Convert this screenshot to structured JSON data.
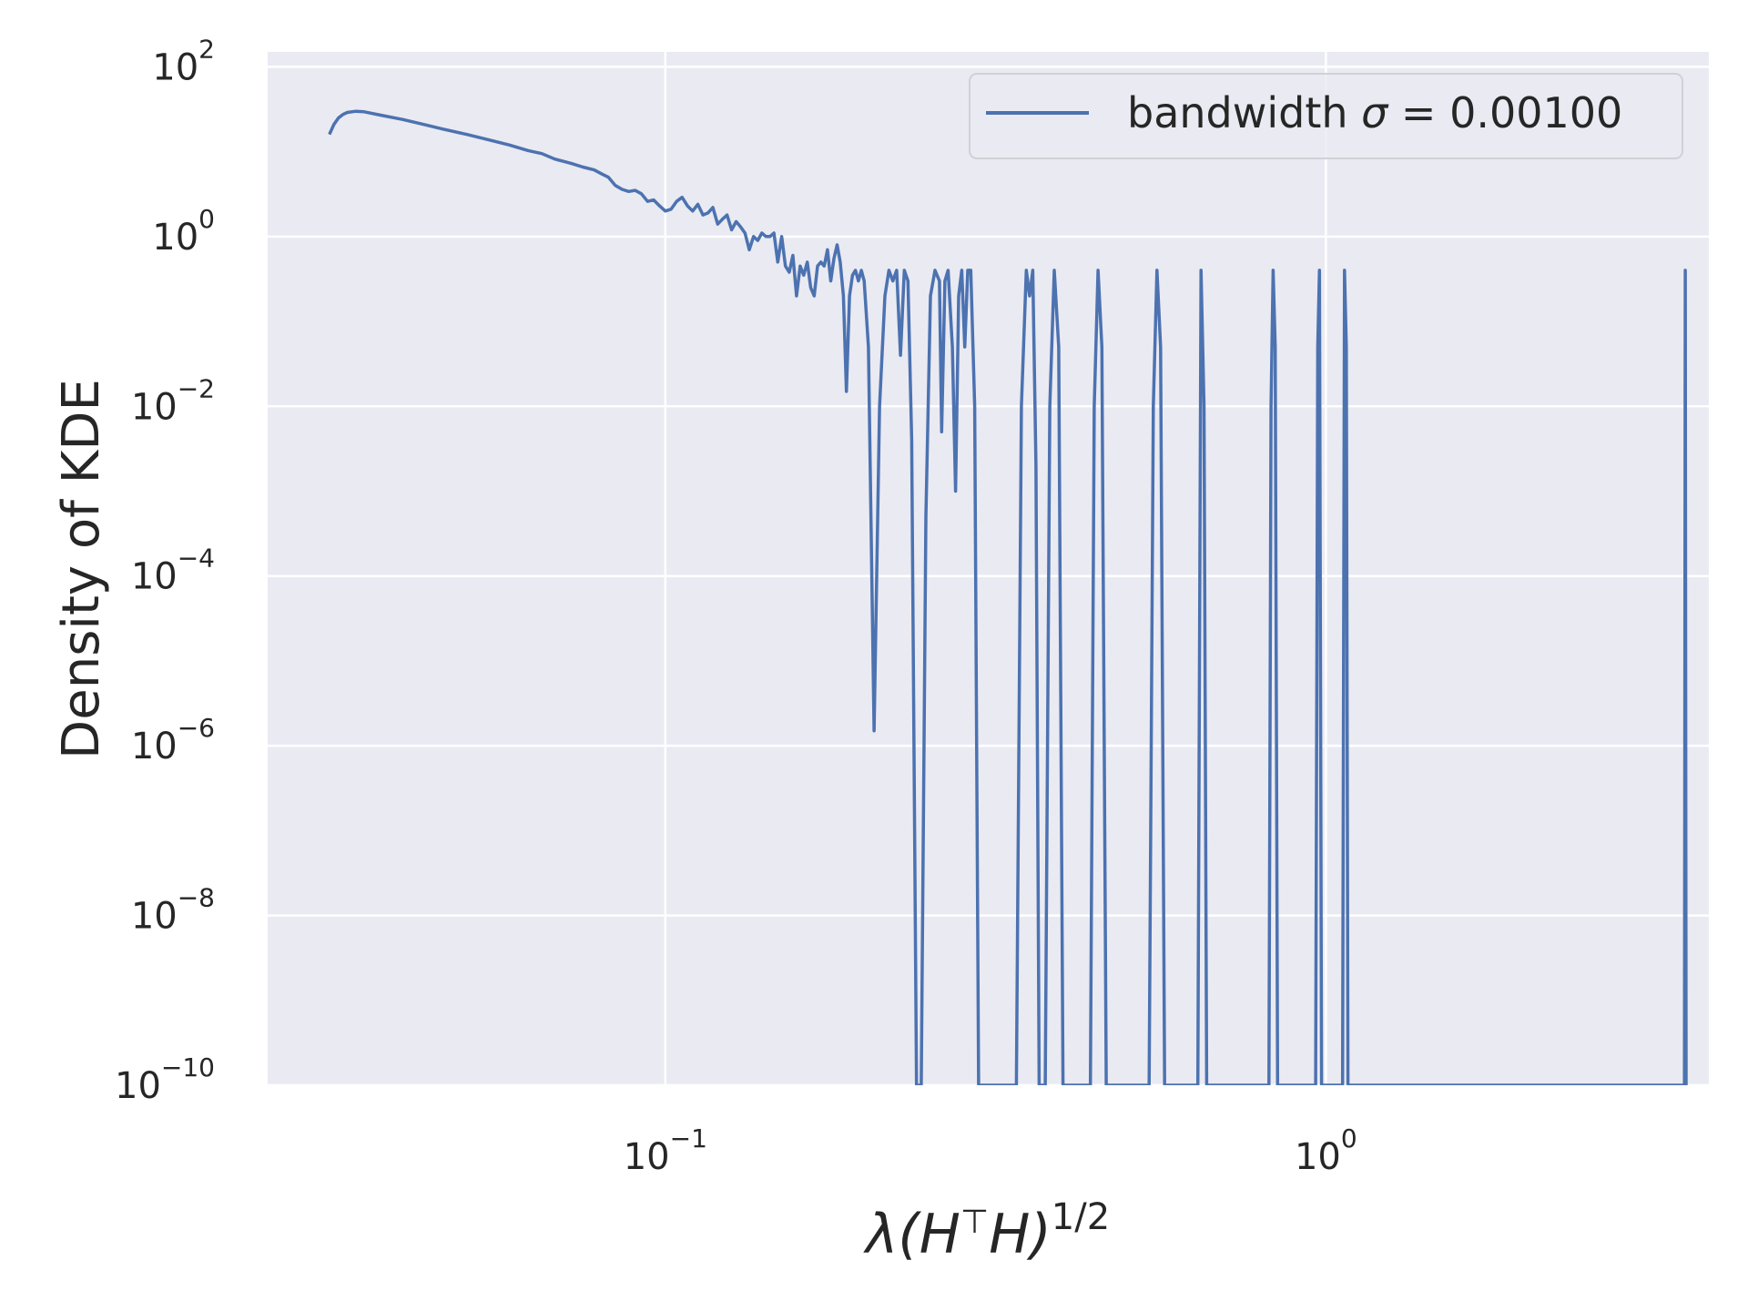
{
  "chart_data": {
    "type": "line",
    "xlabel": "λ(H⊤H)1/2",
    "ylabel": "Density of KDE",
    "xscale": "log",
    "yscale": "log",
    "xlim": [
      0.025,
      3.8
    ],
    "ylim": [
      1e-10,
      150
    ],
    "grid": true,
    "legend_position": "top-right",
    "background": "#eaeaf2",
    "grid_color": "#ffffff",
    "x_ticks": [
      {
        "value": 0.1,
        "base": "10",
        "exp": "−1"
      },
      {
        "value": 1,
        "base": "10",
        "exp": "0"
      }
    ],
    "y_ticks": [
      {
        "value": 100,
        "base": "10",
        "exp": "2"
      },
      {
        "value": 1,
        "base": "10",
        "exp": "0"
      },
      {
        "value": 0.01,
        "base": "10",
        "exp": "−2"
      },
      {
        "value": 0.0001,
        "base": "10",
        "exp": "−4"
      },
      {
        "value": 1e-06,
        "base": "10",
        "exp": "−6"
      },
      {
        "value": 1e-08,
        "base": "10",
        "exp": "−8"
      },
      {
        "value": 1e-10,
        "base": "10",
        "exp": "−10"
      }
    ],
    "series": [
      {
        "name": "bandwidth σ = 0.00100",
        "color": "#4c72b0",
        "points": [
          [
            0.031,
            16
          ],
          [
            0.0315,
            21
          ],
          [
            0.032,
            25
          ],
          [
            0.0325,
            27.5
          ],
          [
            0.033,
            29
          ],
          [
            0.034,
            30
          ],
          [
            0.035,
            29.5
          ],
          [
            0.037,
            27
          ],
          [
            0.04,
            24
          ],
          [
            0.043,
            21
          ],
          [
            0.046,
            18.5
          ],
          [
            0.05,
            16
          ],
          [
            0.054,
            13.8
          ],
          [
            0.058,
            12
          ],
          [
            0.062,
            10.3
          ],
          [
            0.065,
            9.5
          ],
          [
            0.068,
            8.2
          ],
          [
            0.072,
            7.3
          ],
          [
            0.075,
            6.6
          ],
          [
            0.078,
            6.1
          ],
          [
            0.08,
            5.5
          ],
          [
            0.082,
            5.0
          ],
          [
            0.084,
            4.0
          ],
          [
            0.086,
            3.6
          ],
          [
            0.088,
            3.4
          ],
          [
            0.09,
            3.5
          ],
          [
            0.092,
            3.2
          ],
          [
            0.094,
            2.6
          ],
          [
            0.096,
            2.7
          ],
          [
            0.098,
            2.3
          ],
          [
            0.1,
            2.0
          ],
          [
            0.102,
            2.1
          ],
          [
            0.104,
            2.6
          ],
          [
            0.106,
            2.9
          ],
          [
            0.108,
            2.3
          ],
          [
            0.11,
            2.0
          ],
          [
            0.112,
            2.4
          ],
          [
            0.114,
            1.8
          ],
          [
            0.116,
            1.9
          ],
          [
            0.118,
            2.2
          ],
          [
            0.12,
            1.4
          ],
          [
            0.122,
            1.6
          ],
          [
            0.124,
            1.8
          ],
          [
            0.126,
            1.2
          ],
          [
            0.128,
            1.5
          ],
          [
            0.13,
            1.3
          ],
          [
            0.132,
            1.1
          ],
          [
            0.134,
            0.7
          ],
          [
            0.136,
            1.0
          ],
          [
            0.138,
            0.9
          ],
          [
            0.14,
            1.1
          ],
          [
            0.142,
            1.0
          ],
          [
            0.144,
            1.0
          ],
          [
            0.146,
            1.1
          ],
          [
            0.148,
            0.5
          ],
          [
            0.15,
            1.0
          ],
          [
            0.152,
            0.45
          ],
          [
            0.154,
            0.38
          ],
          [
            0.156,
            0.6
          ],
          [
            0.158,
            0.2
          ],
          [
            0.16,
            0.45
          ],
          [
            0.162,
            0.35
          ],
          [
            0.164,
            0.5
          ],
          [
            0.166,
            0.25
          ],
          [
            0.168,
            0.2
          ],
          [
            0.17,
            0.45
          ],
          [
            0.172,
            0.5
          ],
          [
            0.174,
            0.45
          ],
          [
            0.176,
            0.7
          ],
          [
            0.178,
            0.3
          ],
          [
            0.18,
            0.55
          ],
          [
            0.182,
            0.8
          ],
          [
            0.184,
            0.5
          ],
          [
            0.186,
            0.2
          ],
          [
            0.188,
            0.015
          ],
          [
            0.19,
            0.2
          ],
          [
            0.192,
            0.35
          ],
          [
            0.194,
            0.4
          ],
          [
            0.196,
            0.3
          ],
          [
            0.198,
            0.4
          ],
          [
            0.2,
            0.3
          ],
          [
            0.203,
            0.05
          ],
          [
            0.207,
            1.5e-06
          ],
          [
            0.211,
            0.01
          ],
          [
            0.215,
            0.2
          ],
          [
            0.218,
            0.4
          ],
          [
            0.221,
            0.3
          ],
          [
            0.224,
            0.4
          ],
          [
            0.227,
            0.04
          ],
          [
            0.23,
            0.4
          ],
          [
            0.233,
            0.3
          ],
          [
            0.236,
            0.004
          ],
          [
            0.24,
            1e-10
          ],
          [
            0.244,
            1e-10
          ],
          [
            0.248,
            0.0005
          ],
          [
            0.252,
            0.2
          ],
          [
            0.256,
            0.4
          ],
          [
            0.26,
            0.3
          ],
          [
            0.262,
            0.005
          ],
          [
            0.265,
            0.3
          ],
          [
            0.268,
            0.4
          ],
          [
            0.272,
            0.05
          ],
          [
            0.275,
            0.001
          ],
          [
            0.278,
            0.2
          ],
          [
            0.281,
            0.4
          ],
          [
            0.284,
            0.05
          ],
          [
            0.287,
            0.4
          ],
          [
            0.29,
            0.4
          ],
          [
            0.294,
            0.01
          ],
          [
            0.298,
            1e-10
          ],
          [
            0.34,
            1e-10
          ],
          [
            0.346,
            0.01
          ],
          [
            0.352,
            0.4
          ],
          [
            0.356,
            0.2
          ],
          [
            0.36,
            0.4
          ],
          [
            0.364,
            0.002
          ],
          [
            0.368,
            1e-10
          ],
          [
            0.376,
            1e-10
          ],
          [
            0.382,
            0.01
          ],
          [
            0.388,
            0.4
          ],
          [
            0.394,
            0.05
          ],
          [
            0.4,
            1e-10
          ],
          [
            0.44,
            1e-10
          ],
          [
            0.446,
            0.01
          ],
          [
            0.452,
            0.4
          ],
          [
            0.458,
            0.05
          ],
          [
            0.465,
            1e-10
          ],
          [
            0.54,
            1e-10
          ],
          [
            0.548,
            0.01
          ],
          [
            0.555,
            0.4
          ],
          [
            0.562,
            0.05
          ],
          [
            0.57,
            1e-10
          ],
          [
            0.64,
            1e-10
          ],
          [
            0.647,
            0.4
          ],
          [
            0.654,
            0.01
          ],
          [
            0.66,
            1e-10
          ],
          [
            0.82,
            1e-10
          ],
          [
            0.826,
            0.01
          ],
          [
            0.832,
            0.4
          ],
          [
            0.838,
            0.05
          ],
          [
            0.845,
            1e-10
          ],
          [
            0.965,
            1e-10
          ],
          [
            0.972,
            0.05
          ],
          [
            0.978,
            0.4
          ],
          [
            0.985,
            1e-10
          ],
          [
            1.06,
            1e-10
          ],
          [
            1.067,
            0.4
          ],
          [
            1.074,
            0.05
          ],
          [
            1.08,
            1e-10
          ],
          [
            3.49,
            1e-10
          ],
          [
            3.5,
            0.4
          ],
          [
            3.51,
            1e-10
          ]
        ]
      }
    ]
  }
}
